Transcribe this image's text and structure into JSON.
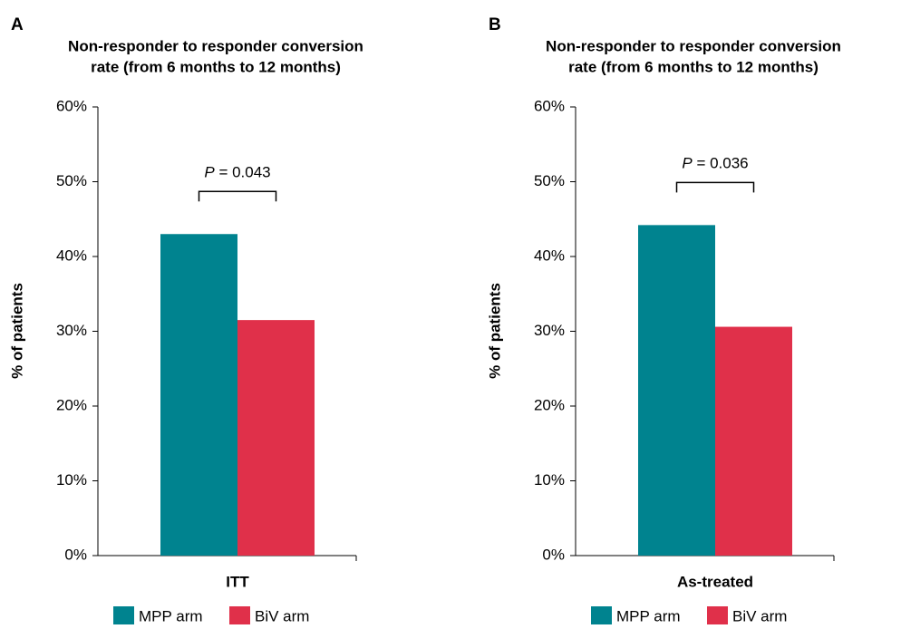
{
  "chart_data": [
    {
      "type": "bar",
      "panel": "A",
      "title": [
        "Non-responder to responder conversion",
        "rate (from 6 months to 12 months)"
      ],
      "y_label": "% of patients",
      "categories": [
        "ITT"
      ],
      "series": [
        {
          "name": "MPP arm",
          "color": "#00838f",
          "values": [
            43
          ]
        },
        {
          "name": "BiV arm",
          "color": "#e0304a",
          "values": [
            31.5
          ]
        }
      ],
      "annotation_label": "P",
      "annotation": "= 0.043",
      "ylim": [
        0,
        60
      ],
      "yticks": [
        {
          "value": 0,
          "label": "0%"
        },
        {
          "value": 10,
          "label": "10%"
        },
        {
          "value": 20,
          "label": "20%"
        },
        {
          "value": 30,
          "label": "30%"
        },
        {
          "value": 40,
          "label": "40%"
        },
        {
          "value": 50,
          "label": "50%"
        },
        {
          "value": 60,
          "label": "60%"
        }
      ]
    },
    {
      "type": "bar",
      "panel": "B",
      "title": [
        "Non-responder to responder conversion",
        "rate (from 6 months to 12 months)"
      ],
      "y_label": "% of patients",
      "categories": [
        "As-treated"
      ],
      "series": [
        {
          "name": "MPP arm",
          "color": "#00838f",
          "values": [
            44.2
          ]
        },
        {
          "name": "BiV arm",
          "color": "#e0304a",
          "values": [
            30.6
          ]
        }
      ],
      "annotation_label": "P",
      "annotation": "= 0.036",
      "ylim": [
        0,
        60
      ],
      "yticks": [
        {
          "value": 0,
          "label": "0%"
        },
        {
          "value": 10,
          "label": "10%"
        },
        {
          "value": 20,
          "label": "20%"
        },
        {
          "value": 30,
          "label": "30%"
        },
        {
          "value": 40,
          "label": "40%"
        },
        {
          "value": 50,
          "label": "50%"
        },
        {
          "value": 60,
          "label": "60%"
        }
      ]
    }
  ]
}
